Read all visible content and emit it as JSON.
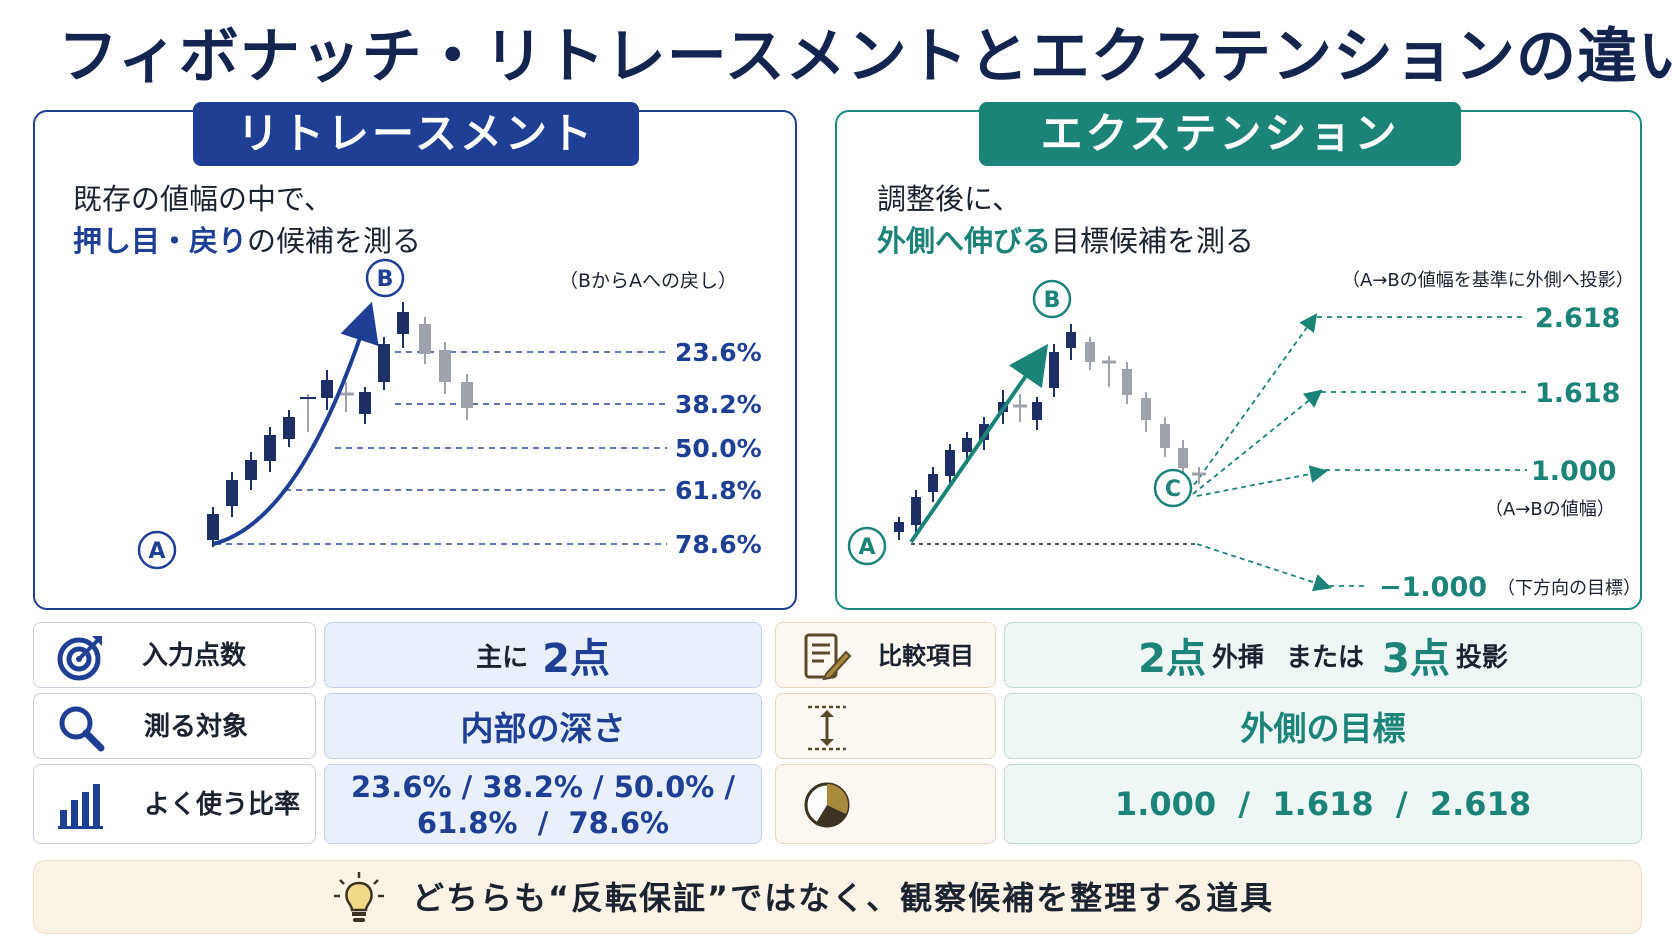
{
  "title": "フィボナッチ・リトレースメントとエクステンションの違い",
  "retracement": {
    "badge": "リトレースメント",
    "desc_line1": "既存の値幅の中で、",
    "desc_em": "押し目・戻り",
    "desc_rest": "の候補を測る",
    "note": "（BからAへの戻し）",
    "point_a": "A",
    "point_b": "B",
    "levels": [
      "23.6%",
      "38.2%",
      "50.0%",
      "61.8%",
      "78.6%"
    ]
  },
  "extension": {
    "badge": "エクステンション",
    "desc_line1": "調整後に、",
    "desc_em": "外側へ伸びる",
    "desc_rest": "目標候補を測る",
    "note": "（A→Bの値幅を基準に外側へ投影）",
    "point_a": "A",
    "point_b": "B",
    "point_c": "C",
    "levels": [
      "2.618",
      "1.618",
      "1.000",
      "−1.000"
    ],
    "level_1000_note": "（A→Bの値幅）",
    "level_neg_note": "（下方向の目標）"
  },
  "comparison": {
    "rows": [
      {
        "label": "入力点数",
        "icon": "target-icon",
        "ret_prefix": "主に",
        "ret_num": "2点"
      },
      {
        "label": "測る対象",
        "icon": "magnifier-icon",
        "ret_value": "内部の深さ"
      },
      {
        "label": "よく使う比率",
        "icon": "bar-chart-icon",
        "ret_line1": "23.6% / 38.2% / 50.0% /",
        "ret_line2": "61.8%  /  78.6%"
      }
    ],
    "right_rows": [
      {
        "label": "比較項目",
        "icon": "document-pen-icon",
        "num1": "2点",
        "word1": "外挿",
        "mid": "または",
        "num2": "3点",
        "word2": "投影"
      },
      {
        "label": "",
        "icon": "vertical-measure-icon",
        "value": "外側の目標"
      },
      {
        "label": "",
        "icon": "pie-chart-icon",
        "value": "1.000  /  1.618  /  2.618"
      }
    ]
  },
  "footer": {
    "icon": "lightbulb-icon",
    "text": "どちらも“反転保証”ではなく、観察候補を整理する道具"
  },
  "colors": {
    "navy": "#13254f",
    "blue": "#1e3f93",
    "teal": "#1b8378",
    "gold": "#a88a3c",
    "candle_dark": "#1e2f66",
    "candle_gray": "#9ea3ab"
  }
}
